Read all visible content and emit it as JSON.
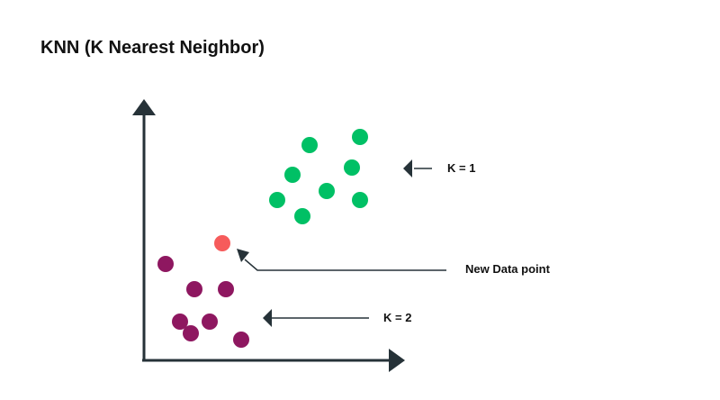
{
  "title": "KNN (K Nearest Neighbor)",
  "labels": {
    "k1": "K = 1",
    "new_point": "New Data point",
    "k2": "K = 2"
  },
  "colors": {
    "axis": "#263238",
    "green_class": "#00c065",
    "purple_class": "#8e1760",
    "new_point": "#f65b5b",
    "arrow": "#263238"
  }
}
